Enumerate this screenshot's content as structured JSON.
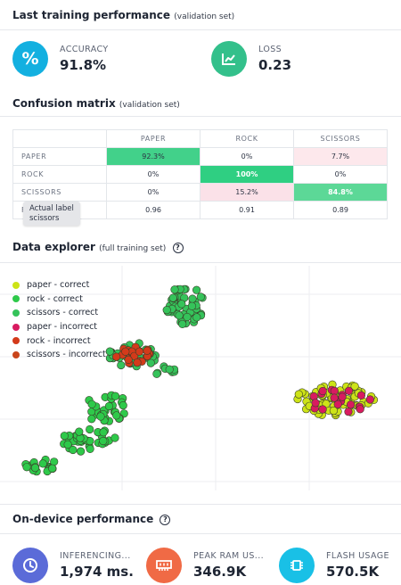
{
  "performance": {
    "title": "Last training performance",
    "subtitle": "(validation set)",
    "accuracy": {
      "label": "ACCURACY",
      "value": "91.8%",
      "icon": "percent-icon",
      "color": "#13b0e0"
    },
    "loss": {
      "label": "LOSS",
      "value": "0.23",
      "icon": "chart-line-icon",
      "color": "#33c08b"
    }
  },
  "confusion": {
    "title": "Confusion matrix",
    "subtitle": "(validation set)",
    "columns": [
      "PAPER",
      "ROCK",
      "SCISSORS"
    ],
    "rows": [
      {
        "label": "PAPER",
        "cells": [
          "92.3%",
          "0%",
          "7.7%"
        ],
        "colors": [
          "#42d18a",
          "#ffffff",
          "#fde8ec"
        ]
      },
      {
        "label": "ROCK",
        "cells": [
          "0%",
          "100%",
          "0%"
        ],
        "colors": [
          "#ffffff",
          "#2fcf82",
          "#ffffff"
        ]
      },
      {
        "label": "SCISSORS",
        "cells": [
          "0%",
          "15.2%",
          "84.8%"
        ],
        "colors": [
          "#ffffff",
          "#fbe1e8",
          "#5cd897"
        ]
      },
      {
        "label": "F1 SCORE",
        "cells": [
          "0.96",
          "0.91",
          "0.89"
        ],
        "colors": [
          "#ffffff",
          "#ffffff",
          "#ffffff"
        ]
      }
    ],
    "tooltip": {
      "line1": "Actual label",
      "line2": "scissors"
    }
  },
  "explorer": {
    "title": "Data explorer",
    "subtitle": "(full training set)",
    "help_icon": "?",
    "legend": [
      {
        "label": "paper - correct",
        "color": "#cde317"
      },
      {
        "label": "rock - correct",
        "color": "#2ec94a"
      },
      {
        "label": "scissors - correct",
        "color": "#35c35a"
      },
      {
        "label": "paper - incorrect",
        "color": "#d81b60"
      },
      {
        "label": "rock - incorrect",
        "color": "#d33a1a"
      },
      {
        "label": "scissors - incorrect",
        "color": "#c9451c"
      }
    ]
  },
  "ondevice": {
    "title": "On-device performance",
    "help_icon": "?",
    "metrics": [
      {
        "label": "INFERENCING...",
        "value": "1,974 ms.",
        "icon": "clock-icon",
        "color": "#5b6bd8"
      },
      {
        "label": "PEAK RAM US...",
        "value": "346.9K",
        "icon": "memory-icon",
        "color": "#f06a45"
      },
      {
        "label": "FLASH USAGE",
        "value": "570.5K",
        "icon": "chip-icon",
        "color": "#19c0e6"
      }
    ]
  }
}
